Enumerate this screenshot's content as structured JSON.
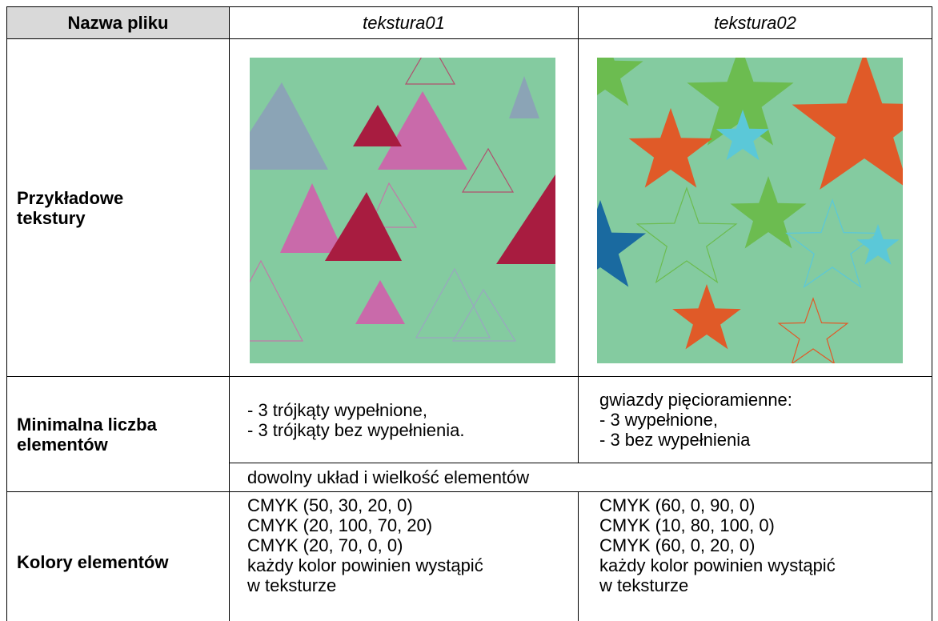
{
  "table": {
    "header": [
      "Nazwa pliku",
      "tekstura01",
      "tekstura02"
    ],
    "rows": [
      {
        "label": [
          "Przykładowe",
          "tekstury"
        ]
      },
      {
        "label": [
          "Minimalna liczba",
          "elementów"
        ],
        "cells": [
          [
            "- 3 trójkąty wypełnione,",
            "- 3 trójkąty bez wypełnienia."
          ],
          [
            "gwiazdy pięcioramienne:",
            "- 3 wypełnione,",
            "- 3 bez wypełnienia"
          ]
        ]
      },
      {
        "merged": "dowolny układ i wielkość elementów"
      },
      {
        "label": [
          "Kolory elementów"
        ],
        "cells": [
          [
            "CMYK (50, 30, 20, 0)",
            "CMYK (20, 100, 70, 20)",
            "CMYK (20, 70, 0, 0)",
            "każdy kolor powinien wystąpić",
            "w teksturze"
          ],
          [
            "CMYK (60, 0, 90, 0)",
            "CMYK (10, 80, 100, 0)",
            "CMYK (60, 0, 20, 0)",
            "każdy kolor powinien wystąpić",
            "w teksturze"
          ]
        ]
      }
    ]
  }
}
